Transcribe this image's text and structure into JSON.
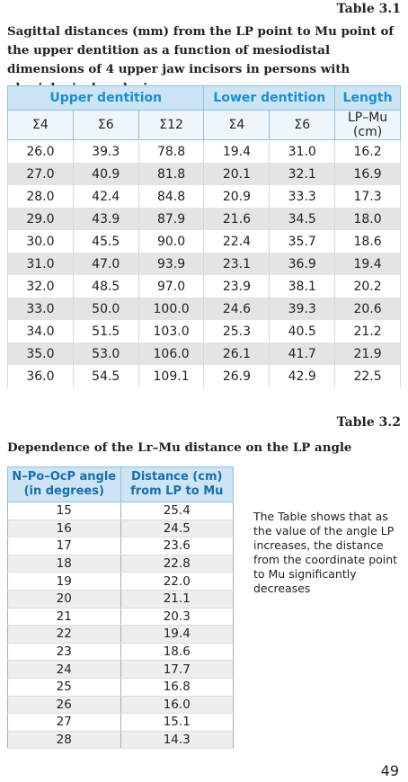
{
  "table1": {
    "label": "Table 3.1",
    "title": "Sagittal distances (mm) from the LP point to Mu point of the upper dentition as a function of mesiodistal dimensions of 4 upper jaw incisors in persons with physiological occlusion",
    "group_headers": [
      "Upper dentition",
      "Lower dentition",
      "Length"
    ],
    "headers": [
      "Σ4",
      "Σ6",
      "Σ12",
      "Σ4",
      "Σ6",
      "LP–Mu (cm)"
    ],
    "rows": [
      [
        "26.0",
        "39.3",
        "78.8",
        "19.4",
        "31.0",
        "16.2"
      ],
      [
        "27.0",
        "40.9",
        "81.8",
        "20.1",
        "32.1",
        "16.9"
      ],
      [
        "28.0",
        "42.4",
        "84.8",
        "20.9",
        "33.3",
        "17.3"
      ],
      [
        "29.0",
        "43.9",
        "87.9",
        "21.6",
        "34.5",
        "18.0"
      ],
      [
        "30.0",
        "45.5",
        "90.0",
        "22.4",
        "35.7",
        "18.6"
      ],
      [
        "31.0",
        "47.0",
        "93.9",
        "23.1",
        "36.9",
        "19.4"
      ],
      [
        "32.0",
        "48.5",
        "97.0",
        "23.9",
        "38.1",
        "20.2"
      ],
      [
        "33.0",
        "50.0",
        "100.0",
        "24.6",
        "39.3",
        "20.6"
      ],
      [
        "34.0",
        "51.5",
        "103.0",
        "25.3",
        "40.5",
        "21.2"
      ],
      [
        "35.0",
        "53.0",
        "106.0",
        "26.1",
        "41.7",
        "21.9"
      ],
      [
        "36.0",
        "54.5",
        "109.1",
        "26.9",
        "42.9",
        "22.5"
      ]
    ]
  },
  "table2": {
    "label": "Table 3.2",
    "title": "Dependence of the Lr–Mu distance on the LP angle",
    "headers": [
      "N–Po–OcP angle (in degrees)",
      "Distance (cm) from LP to Mu"
    ],
    "rows": [
      [
        "15",
        "25.4"
      ],
      [
        "16",
        "24.5"
      ],
      [
        "17",
        "23.6"
      ],
      [
        "18",
        "22.8"
      ],
      [
        "19",
        "22.0"
      ],
      [
        "20",
        "21.1"
      ],
      [
        "21",
        "20.3"
      ],
      [
        "22",
        "19.4"
      ],
      [
        "23",
        "18.6"
      ],
      [
        "24",
        "17.7"
      ],
      [
        "25",
        "16.8"
      ],
      [
        "26",
        "16.0"
      ],
      [
        "27",
        "15.1"
      ],
      [
        "28",
        "14.3"
      ]
    ],
    "note": "The Table shows that as the value of the angle LP increases, the distance from the coordinate point to Mu significantly decreases"
  },
  "page_number": "49"
}
